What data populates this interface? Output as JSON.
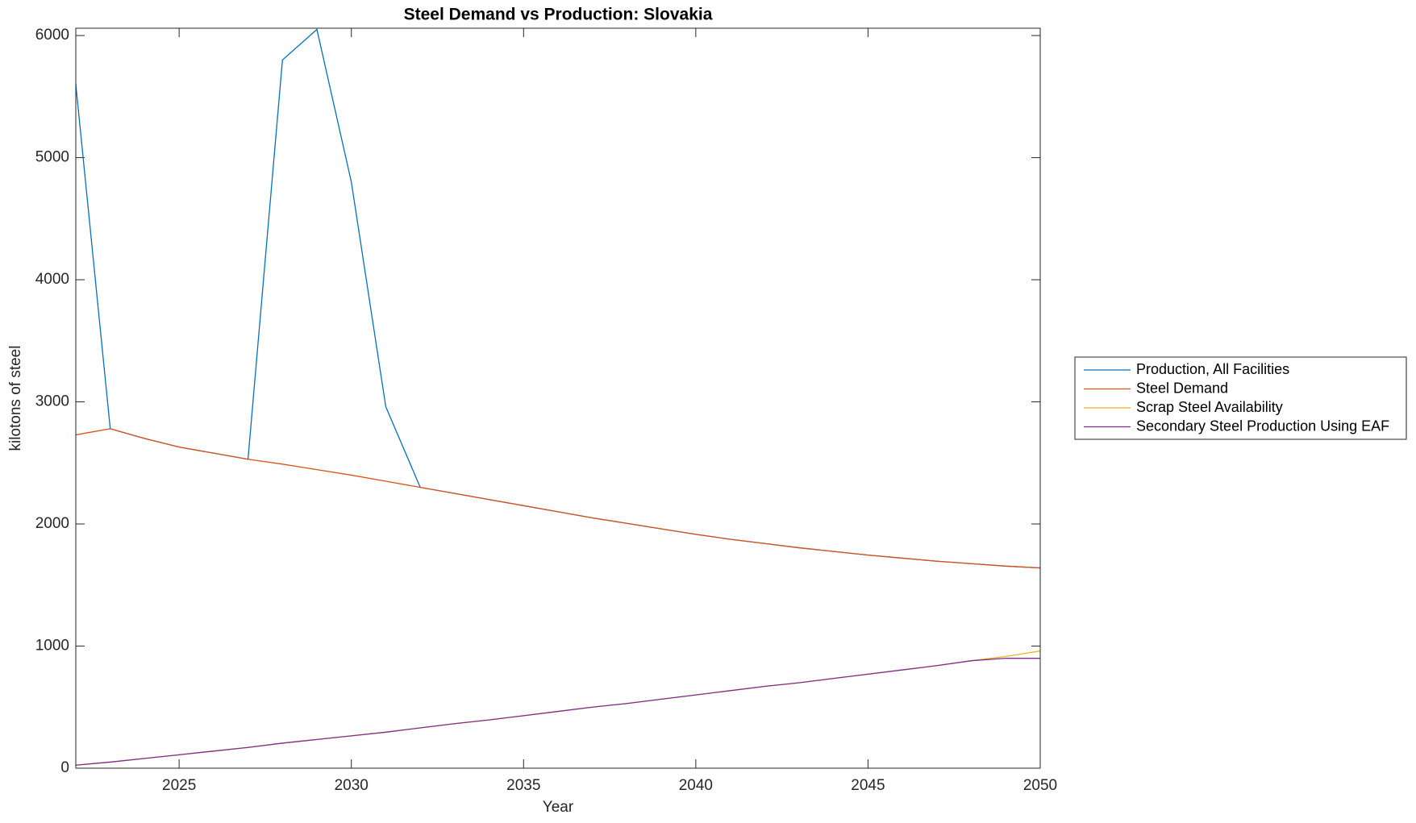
{
  "chart_data": {
    "type": "line",
    "title": "Steel Demand vs Production: Slovakia",
    "x_label": "Year",
    "y_label": "kilotons of steel",
    "x": [
      2022,
      2023,
      2024,
      2025,
      2026,
      2027,
      2028,
      2029,
      2030,
      2031,
      2032,
      2033,
      2034,
      2035,
      2036,
      2037,
      2038,
      2039,
      2040,
      2041,
      2042,
      2043,
      2044,
      2045,
      2046,
      2047,
      2048,
      2049,
      2050
    ],
    "series": [
      {
        "name": "Production, All Facilities",
        "color": "#0072BD",
        "values": [
          5600,
          2780,
          2700,
          2630,
          2580,
          2530,
          5800,
          6050,
          4800,
          2960,
          2300,
          2250,
          2200,
          2150,
          2100,
          2050,
          2005,
          1960,
          1915,
          1875,
          1840,
          1805,
          1775,
          1745,
          1720,
          1695,
          1675,
          1655,
          1640
        ]
      },
      {
        "name": "Steel Demand",
        "color": "#D95319",
        "values": [
          2730,
          2780,
          2700,
          2630,
          2580,
          2530,
          2490,
          2445,
          2400,
          2350,
          2300,
          2250,
          2200,
          2150,
          2100,
          2050,
          2005,
          1960,
          1915,
          1875,
          1840,
          1805,
          1775,
          1745,
          1720,
          1695,
          1675,
          1655,
          1640
        ]
      },
      {
        "name": "Scrap Steel Availability",
        "color": "#EDB120",
        "values": [
          25,
          50,
          80,
          110,
          140,
          170,
          205,
          235,
          265,
          295,
          330,
          365,
          395,
          430,
          465,
          500,
          530,
          565,
          600,
          635,
          670,
          700,
          735,
          770,
          805,
          840,
          880,
          915,
          960
        ]
      },
      {
        "name": "Secondary Steel Production Using EAF",
        "color": "#7E2F8E",
        "values": [
          25,
          50,
          80,
          110,
          140,
          170,
          205,
          235,
          265,
          295,
          330,
          365,
          395,
          430,
          465,
          500,
          530,
          565,
          600,
          635,
          670,
          700,
          735,
          770,
          805,
          840,
          880,
          900,
          900
        ]
      }
    ],
    "xlim": [
      2022,
      2050
    ],
    "xticks": [
      2025,
      2030,
      2035,
      2040,
      2045,
      2050
    ],
    "ylim": [
      0,
      6060
    ],
    "yticks": [
      0,
      1000,
      2000,
      3000,
      4000,
      5000,
      6000
    ],
    "grid": false,
    "legend": "east-outside"
  }
}
